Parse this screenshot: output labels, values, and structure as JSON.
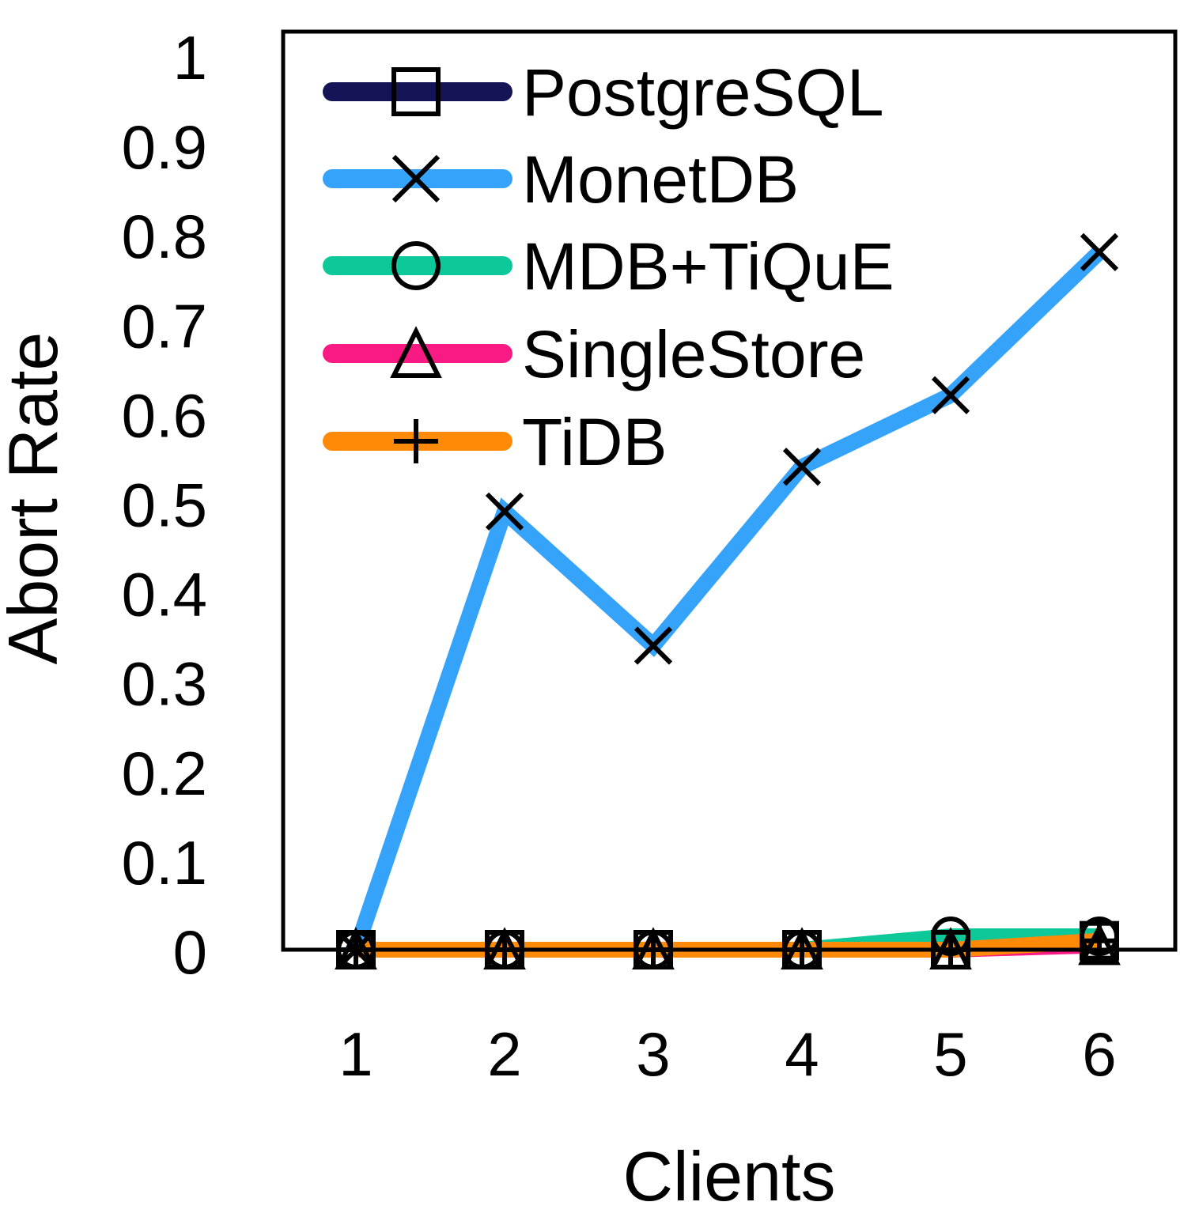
{
  "chart_data": {
    "type": "line",
    "title": "",
    "xlabel": "Clients",
    "ylabel": "Abort Rate",
    "categories": [
      1,
      2,
      3,
      4,
      5,
      6
    ],
    "x_tick_labels": [
      "1",
      "2",
      "3",
      "4",
      "5",
      "6"
    ],
    "y_tick_labels": [
      "0",
      "0.1",
      "0.2",
      "0.3",
      "0.4",
      "0.5",
      "0.6",
      "0.7",
      "0.8",
      "0.9",
      "1"
    ],
    "ylim": [
      0,
      1
    ],
    "grid": false,
    "legend_position": "top-left",
    "series": [
      {
        "name": "PostgreSQL",
        "color": "#131556",
        "marker": "square",
        "values": [
          0,
          0,
          0,
          0,
          0,
          0.01
        ]
      },
      {
        "name": "MonetDB",
        "color": "#35a3fa",
        "marker": "x",
        "values": [
          0,
          0.49,
          0.34,
          0.54,
          0.62,
          0.78
        ]
      },
      {
        "name": "MDB+TiQuE",
        "color": "#0dc898",
        "marker": "circle",
        "values": [
          0,
          0,
          0,
          0,
          0.015,
          0.015
        ]
      },
      {
        "name": "SingleStore",
        "color": "#fa1a84",
        "marker": "triangle",
        "values": [
          0,
          0,
          0,
          0,
          0,
          0.005
        ]
      },
      {
        "name": "TiDB",
        "color": "#ff8a07",
        "marker": "plus",
        "values": [
          0,
          0,
          0,
          0,
          0,
          0.01
        ]
      }
    ]
  }
}
